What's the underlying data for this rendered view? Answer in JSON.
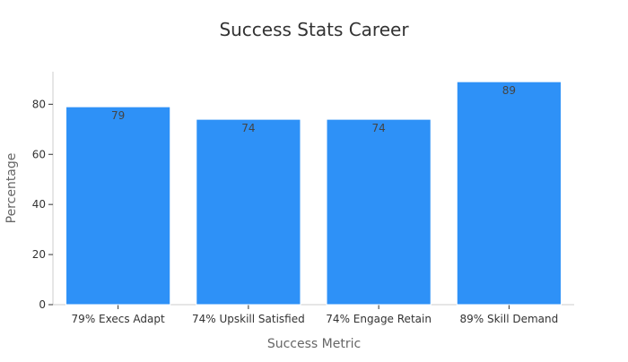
{
  "chart_data": {
    "type": "bar",
    "title": "Success Stats Career",
    "xlabel": "Success Metric",
    "ylabel": "Percentage",
    "categories": [
      "79% Execs Adapt",
      "74% Upskill Satisfied",
      "74% Engage Retain",
      "89% Skill Demand"
    ],
    "values": [
      79,
      74,
      74,
      89
    ],
    "ylim": [
      0,
      93
    ],
    "yticks": [
      0,
      20,
      40,
      60,
      80
    ],
    "grid": false,
    "legend": "none",
    "bar_color": "#2e91f7",
    "bar_edge_color": "#ffffff"
  }
}
